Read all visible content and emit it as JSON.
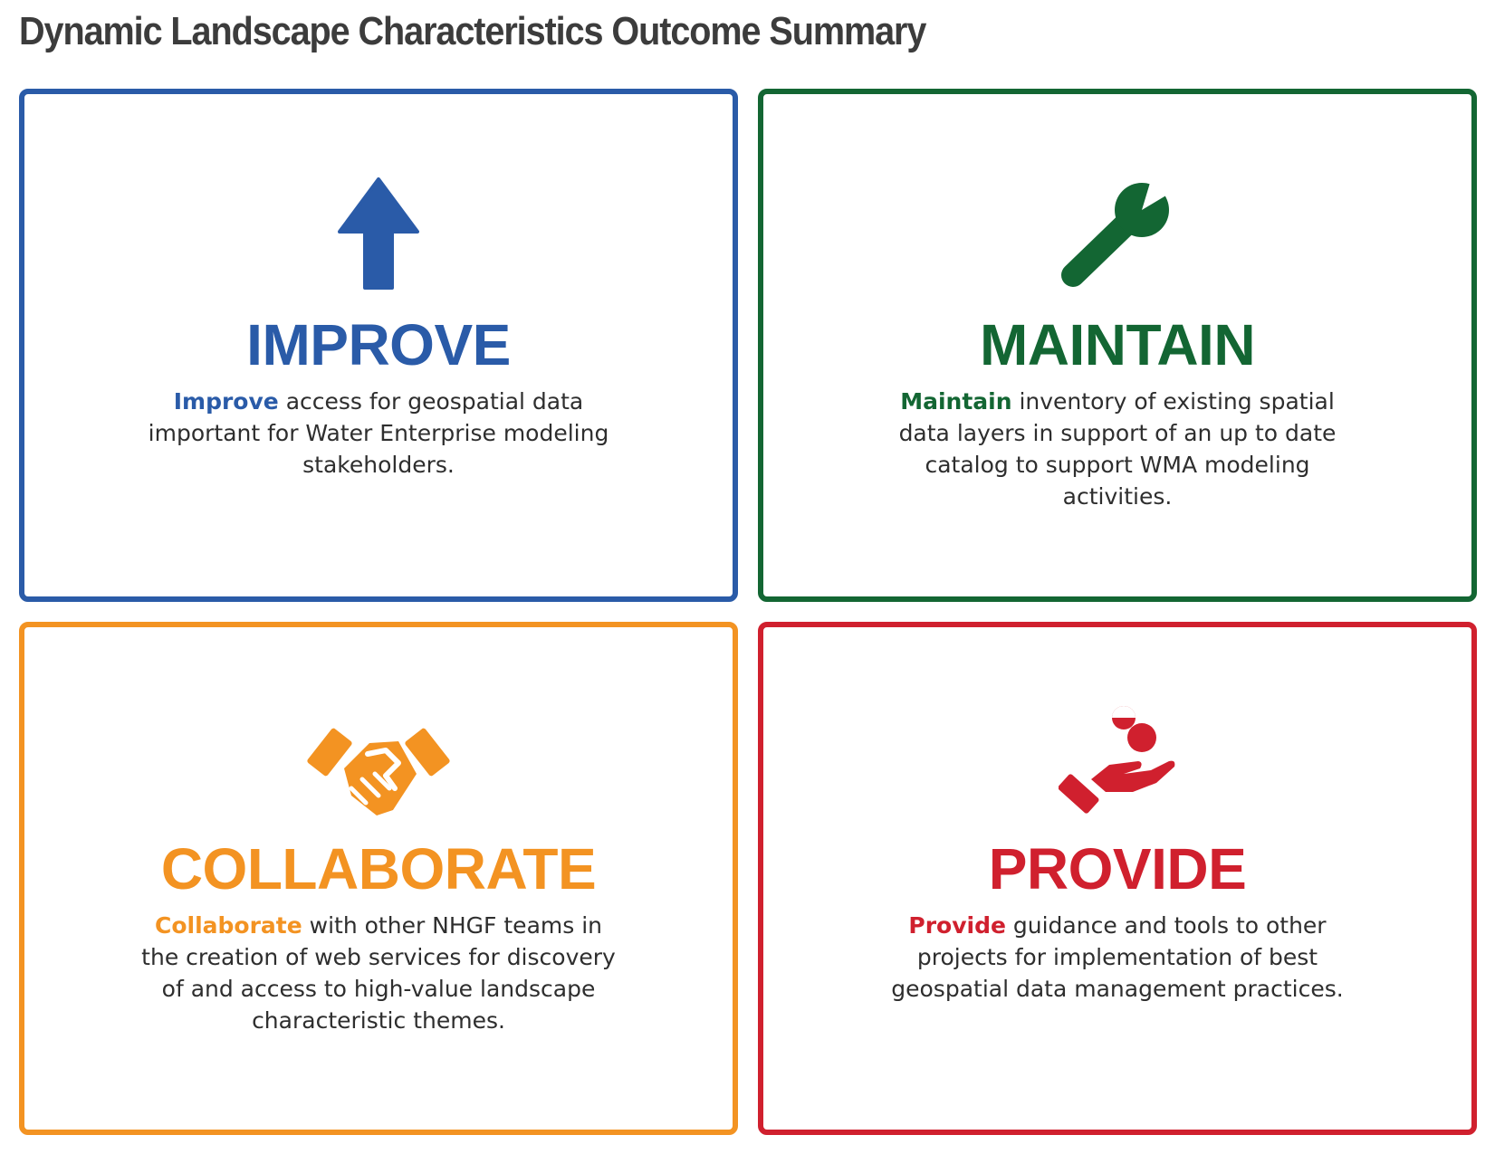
{
  "title": "Dynamic Landscape Characteristics Outcome Summary",
  "cards": [
    {
      "heading": "IMPROVE",
      "lead": "Improve",
      "text": " access for geospatial data important for Water Enterprise modeling stakeholders.",
      "icon": "up-arrow-icon",
      "color": "#2a5ba8"
    },
    {
      "heading": "MAINTAIN",
      "lead": "Maintain",
      "text": " inventory of existing spatial data layers in support of an up to date catalog to support WMA modeling activities.",
      "icon": "wrench-icon",
      "color": "#136633"
    },
    {
      "heading": "COLLABORATE",
      "lead": "Collaborate",
      "text": " with other NHGF teams in the creation of web services for discovery of and access to high-value landscape characteristic themes.",
      "icon": "handshake-icon",
      "color": "#f39322"
    },
    {
      "heading": "PROVIDE",
      "lead": "Provide",
      "text": " guidance and tools to other projects for implementation of best geospatial data management practices.",
      "icon": "hand-giving-icon",
      "color": "#d0202e"
    }
  ]
}
